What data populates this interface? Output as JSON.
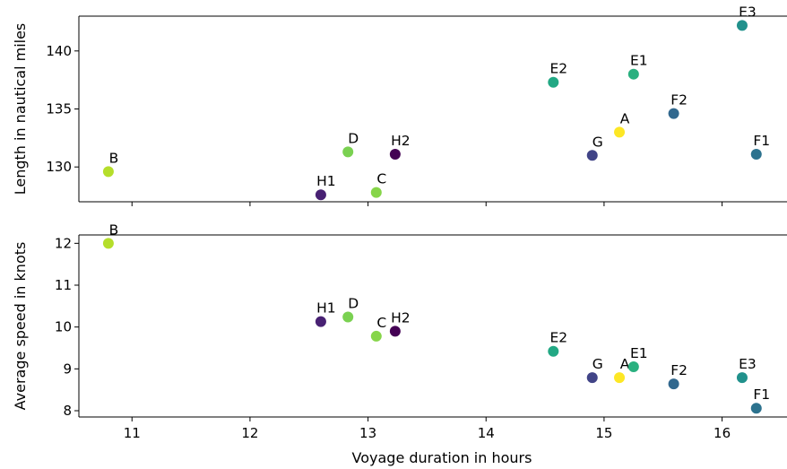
{
  "chart_data": [
    {
      "type": "scatter",
      "xlabel": "",
      "ylabel": "Length in nautical miles",
      "xlim": [
        10.55,
        16.55
      ],
      "ylim": [
        127.0,
        143.0
      ],
      "yticks": [
        130,
        135,
        140
      ],
      "xticks": [
        11,
        12,
        13,
        14,
        15,
        16
      ],
      "show_xtick_labels": false,
      "grid": false,
      "points": [
        {
          "label": "B",
          "x": 10.8,
          "y": 129.6,
          "color": "#b5de2b"
        },
        {
          "label": "H1",
          "x": 12.6,
          "y": 127.6,
          "color": "#482173"
        },
        {
          "label": "D",
          "x": 12.83,
          "y": 131.3,
          "color": "#7ad151"
        },
        {
          "label": "C",
          "x": 13.07,
          "y": 127.8,
          "color": "#86d549"
        },
        {
          "label": "H2",
          "x": 13.23,
          "y": 131.1,
          "color": "#440154"
        },
        {
          "label": "E2",
          "x": 14.57,
          "y": 137.3,
          "color": "#22a884"
        },
        {
          "label": "G",
          "x": 14.9,
          "y": 131.0,
          "color": "#414487"
        },
        {
          "label": "A",
          "x": 15.13,
          "y": 133.0,
          "color": "#fde725"
        },
        {
          "label": "E1",
          "x": 15.25,
          "y": 138.0,
          "color": "#2ab07f"
        },
        {
          "label": "F2",
          "x": 15.59,
          "y": 134.6,
          "color": "#31688e"
        },
        {
          "label": "E3",
          "x": 16.17,
          "y": 142.2,
          "color": "#21918c"
        },
        {
          "label": "F1",
          "x": 16.29,
          "y": 131.1,
          "color": "#2c728e"
        }
      ]
    },
    {
      "type": "scatter",
      "xlabel": "Voyage duration in hours",
      "ylabel": "Average speed in knots",
      "xlim": [
        10.55,
        16.55
      ],
      "ylim": [
        7.85,
        12.2
      ],
      "yticks": [
        8,
        9,
        10,
        11,
        12
      ],
      "xticks": [
        11,
        12,
        13,
        14,
        15,
        16
      ],
      "show_xtick_labels": true,
      "grid": false,
      "points": [
        {
          "label": "B",
          "x": 10.8,
          "y": 12.0,
          "color": "#b5de2b"
        },
        {
          "label": "H1",
          "x": 12.6,
          "y": 10.13,
          "color": "#482173"
        },
        {
          "label": "D",
          "x": 12.83,
          "y": 10.24,
          "color": "#7ad151"
        },
        {
          "label": "C",
          "x": 13.07,
          "y": 9.78,
          "color": "#86d549"
        },
        {
          "label": "H2",
          "x": 13.23,
          "y": 9.9,
          "color": "#440154"
        },
        {
          "label": "E2",
          "x": 14.57,
          "y": 9.42,
          "color": "#22a884"
        },
        {
          "label": "G",
          "x": 14.9,
          "y": 8.79,
          "color": "#414487"
        },
        {
          "label": "A",
          "x": 15.13,
          "y": 8.79,
          "color": "#fde725"
        },
        {
          "label": "E1",
          "x": 15.25,
          "y": 9.05,
          "color": "#2ab07f"
        },
        {
          "label": "F2",
          "x": 15.59,
          "y": 8.64,
          "color": "#31688e"
        },
        {
          "label": "E3",
          "x": 16.17,
          "y": 8.79,
          "color": "#21918c"
        },
        {
          "label": "F1",
          "x": 16.29,
          "y": 8.06,
          "color": "#2c728e"
        }
      ]
    }
  ]
}
